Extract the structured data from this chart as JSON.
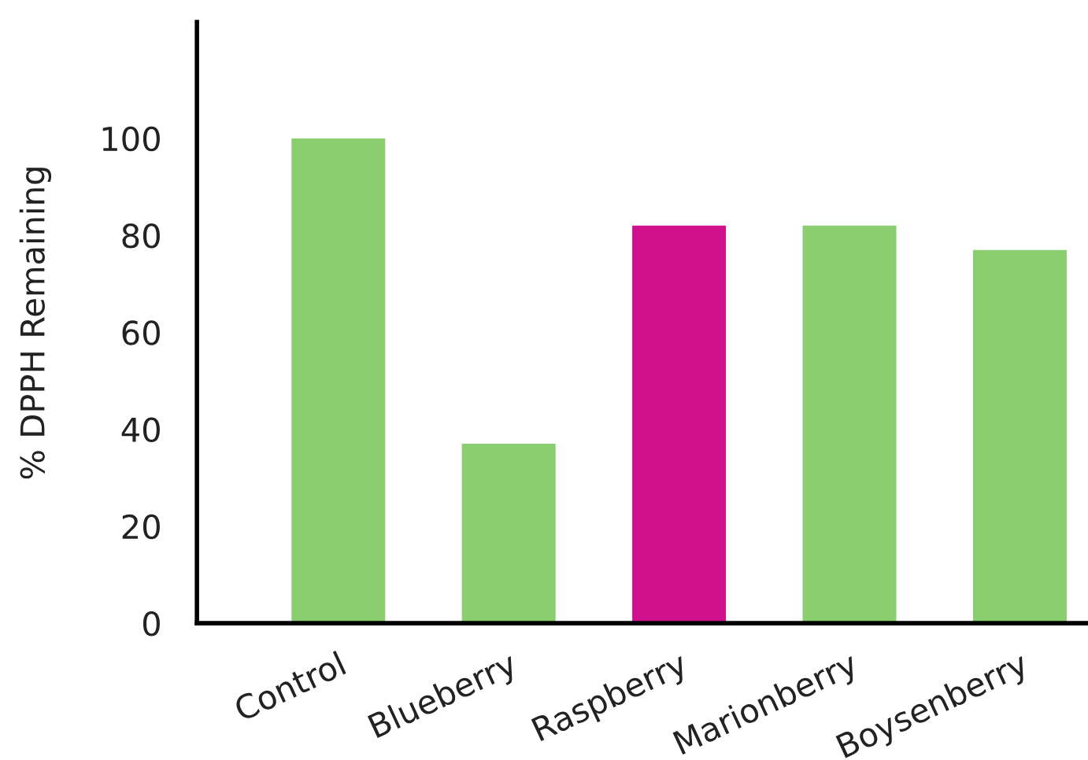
{
  "chart_data": {
    "type": "bar",
    "ylabel": "% DPPH Remaining",
    "categories": [
      "Control",
      "Blueberry",
      "Raspberry",
      "Marionberry",
      "Boysenberry"
    ],
    "values": [
      100,
      37,
      82,
      82,
      77
    ],
    "colors": [
      "#8ace6f",
      "#8ace6f",
      "#d0108c",
      "#8ace6f",
      "#8ace6f"
    ],
    "ylim": [
      0,
      124
    ],
    "yticks": [
      0,
      20,
      40,
      60,
      80,
      100
    ],
    "grid": false,
    "legend": false
  }
}
